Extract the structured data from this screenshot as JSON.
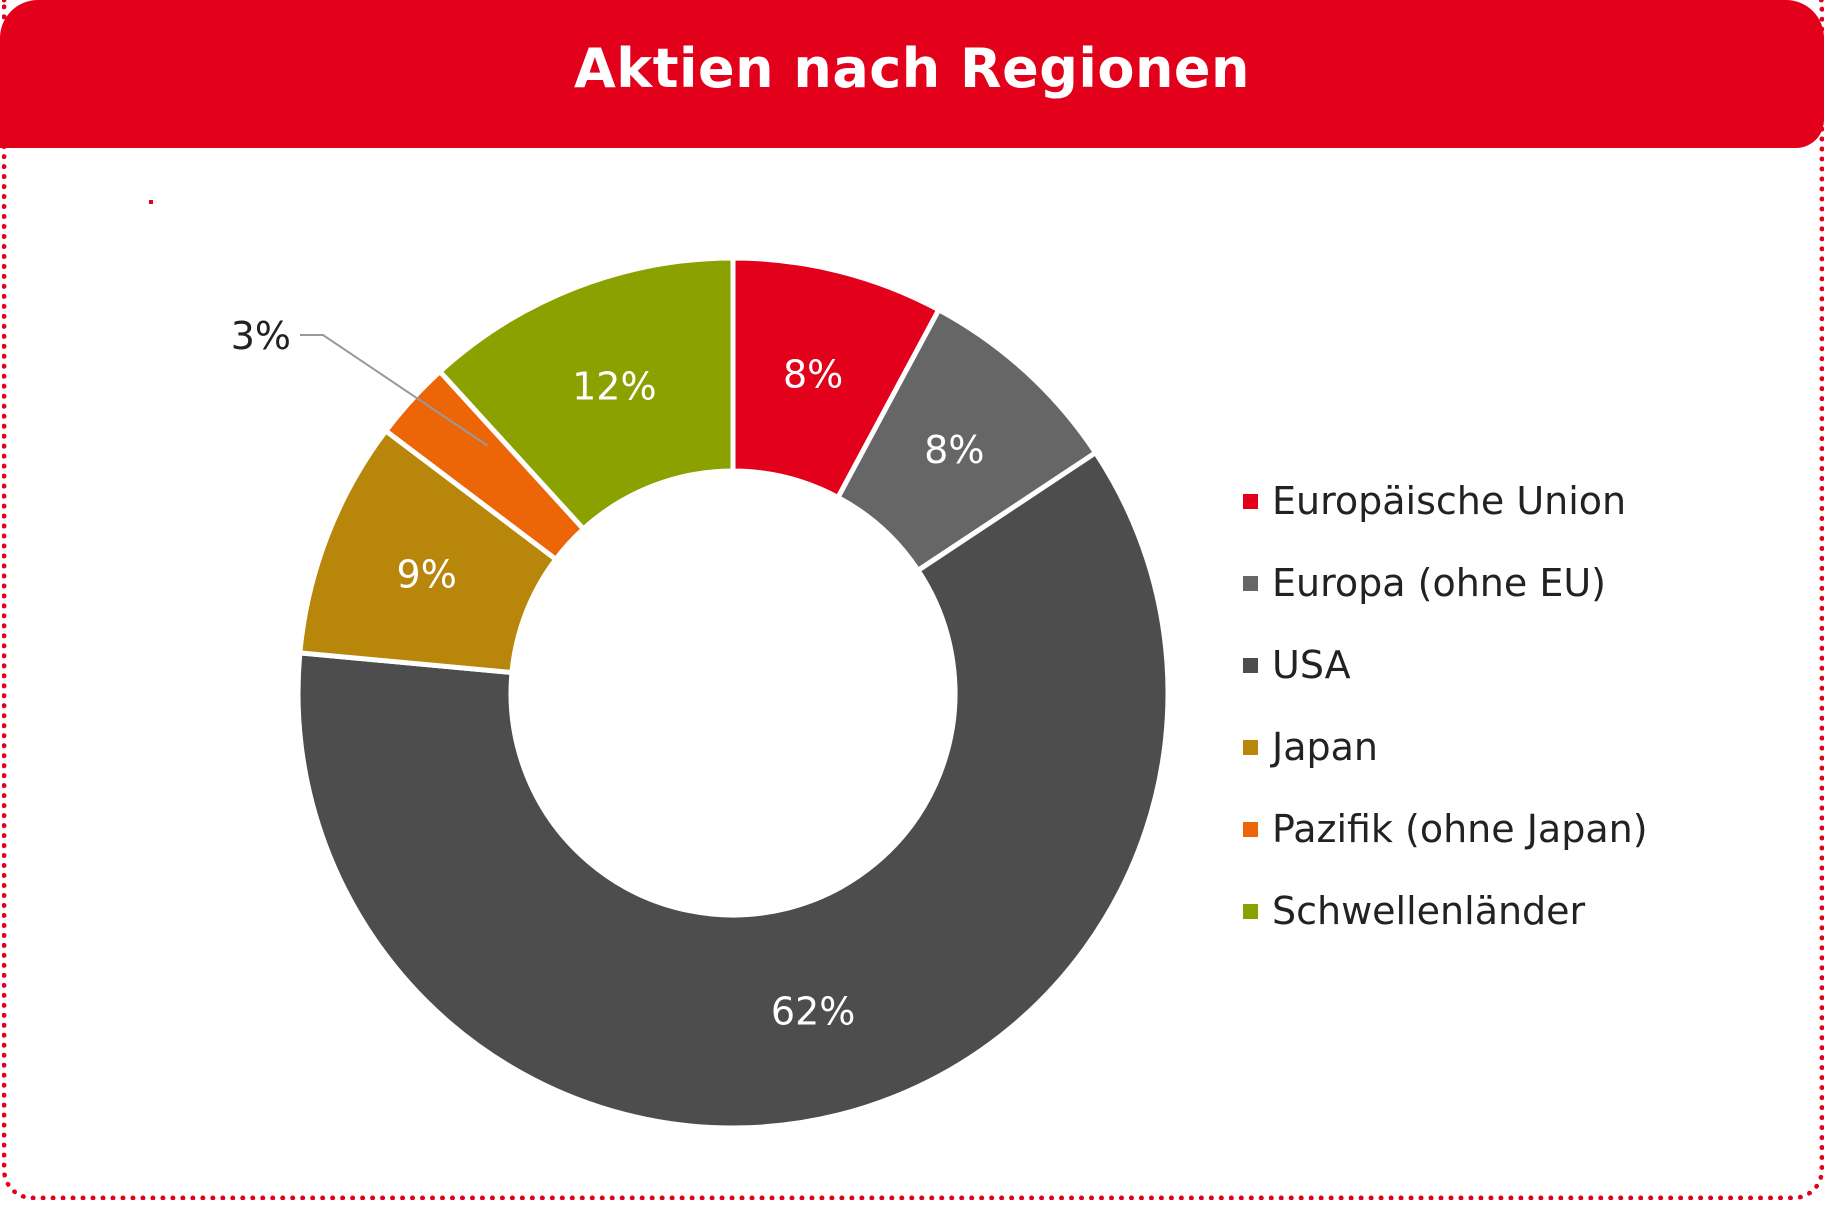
{
  "header": {
    "title": "Aktien nach Regionen"
  },
  "chart_data": {
    "type": "pie",
    "variant": "donut",
    "title": "Aktien nach Regionen",
    "categories": [
      "Europäische Union",
      "Europa (ohne EU)",
      "USA",
      "Japan",
      "Pazifik (ohne Japan)",
      "Schwellenländer"
    ],
    "values": [
      8,
      8,
      62,
      9,
      3,
      12
    ],
    "data_labels": [
      "8%",
      "8%",
      "62%",
      "9%",
      "3%",
      "12%"
    ],
    "colors": [
      "#e2001a",
      "#666666",
      "#4d4d4d",
      "#b8860b",
      "#ec6608",
      "#8aa100"
    ],
    "legend_position": "right"
  }
}
